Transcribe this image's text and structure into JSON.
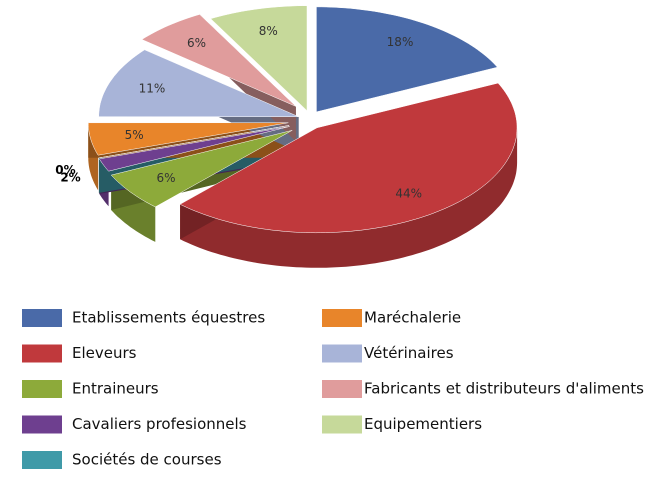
{
  "chart_data": {
    "type": "pie3d",
    "categories": [
      "Etablissements équestres",
      "Eleveurs",
      "Entraineurs",
      "Cavaliers profesionnels",
      "Sociétés de courses",
      "Maréchalerie",
      "Vétérinaires",
      "Fabricants et distributeurs d'aliments",
      "Equipementiers"
    ],
    "values": [
      18,
      44,
      6,
      2,
      0,
      5,
      11,
      6,
      8
    ],
    "value_labels": [
      "18%",
      "44%",
      "6%",
      "2%",
      "0%",
      "5%",
      "11%",
      "6%",
      "8%"
    ],
    "colors": [
      "#4a6aa8",
      "#c0393c",
      "#8daa3a",
      "#6e3f8f",
      "#3f9aa8",
      "#e8852a",
      "#a8b4d8",
      "#e09c9c",
      "#c6d99a"
    ],
    "legend": "bottom"
  }
}
